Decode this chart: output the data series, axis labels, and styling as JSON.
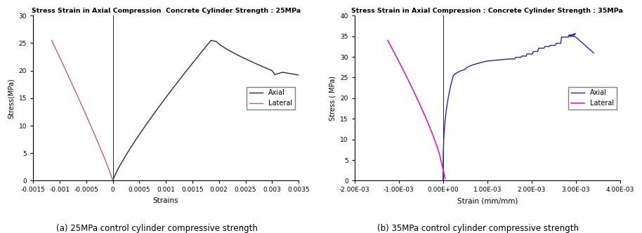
{
  "fig1": {
    "title": "Stress Strain in Axial Compression  Concrete Cylinder Strength : 25MPa",
    "xlabel": "Strains",
    "ylabel": "Stress(MPa)",
    "xlim": [
      -0.0015,
      0.0035
    ],
    "ylim": [
      0,
      30
    ],
    "xticks": [
      -0.0015,
      -0.001,
      -0.0005,
      0,
      0.0005,
      0.001,
      0.0015,
      0.002,
      0.0025,
      0.003,
      0.0035
    ],
    "yticks": [
      0,
      5,
      10,
      15,
      20,
      25,
      30
    ],
    "axial_color": "#2b2b2b",
    "lateral_color": "#c06080",
    "caption": "(a) 25MPa control cylinder compressive strength"
  },
  "fig2": {
    "title": "Stress Strain in Axial Compression : Concrete Cylinder Strength : 35MPa",
    "xlabel": "Strain (mm/mm)",
    "ylabel": "Stress ( MPa)",
    "xlim": [
      -0.002,
      0.004
    ],
    "ylim": [
      0,
      40
    ],
    "xticks2": [
      -0.002,
      -0.001,
      0.0,
      0.001,
      0.002,
      0.003,
      0.004
    ],
    "yticks": [
      0,
      5,
      10,
      15,
      20,
      25,
      30,
      35,
      40
    ],
    "axial_color": "#2222bb",
    "lateral_color": "#cc22cc",
    "caption": "(b) 35MPa control cylinder compressive strength"
  }
}
